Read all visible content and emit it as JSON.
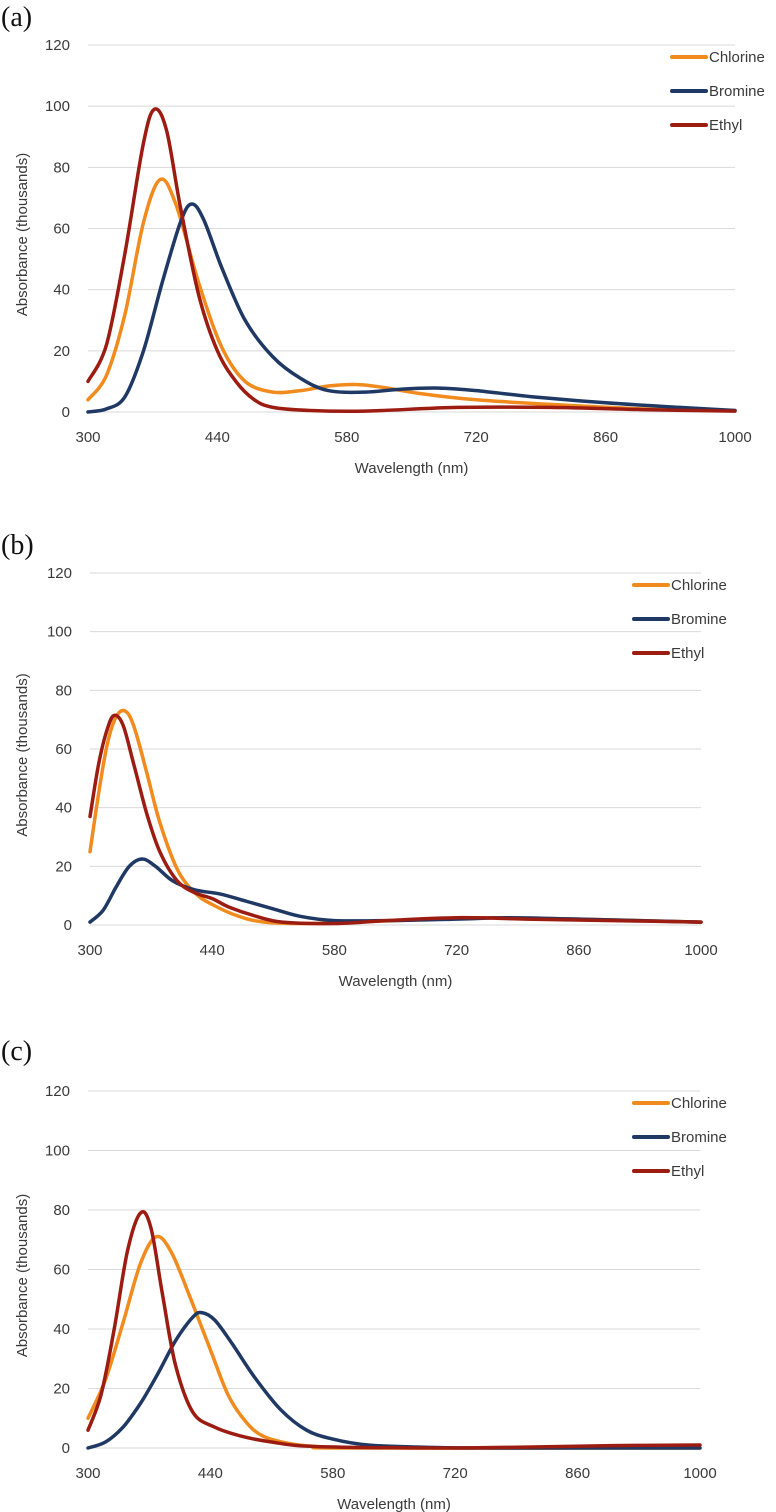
{
  "colors": {
    "Chlorine": "#f28b1e",
    "Bromine": "#1f3864",
    "Ethyl": "#9c1c12"
  },
  "chart_data": [
    {
      "type": "line",
      "panel_label": "(a)",
      "xlabel": "Wavelength (nm)",
      "ylabel": "Absorbance (thousands)",
      "xlim": [
        300,
        1000
      ],
      "ylim": [
        0,
        120
      ],
      "xticks": [
        300,
        440,
        580,
        720,
        860,
        1000
      ],
      "yticks": [
        0,
        20,
        40,
        60,
        80,
        100,
        120
      ],
      "grid": true,
      "legend": "top-right",
      "series": [
        {
          "name": "Chlorine",
          "points": [
            [
              300,
              4
            ],
            [
              320,
              12
            ],
            [
              340,
              32
            ],
            [
              360,
              62
            ],
            [
              378,
              76
            ],
            [
              395,
              68
            ],
            [
              420,
              42
            ],
            [
              445,
              21
            ],
            [
              470,
              10
            ],
            [
              500,
              6.5
            ],
            [
              530,
              7
            ],
            [
              560,
              8.5
            ],
            [
              590,
              9
            ],
            [
              620,
              8
            ],
            [
              660,
              6
            ],
            [
              720,
              4
            ],
            [
              800,
              2.5
            ],
            [
              900,
              1
            ],
            [
              1000,
              0.5
            ]
          ]
        },
        {
          "name": "Bromine",
          "points": [
            [
              300,
              0
            ],
            [
              320,
              1
            ],
            [
              340,
              5
            ],
            [
              360,
              20
            ],
            [
              380,
              42
            ],
            [
              400,
              62
            ],
            [
              412,
              68
            ],
            [
              425,
              63
            ],
            [
              445,
              47
            ],
            [
              470,
              30
            ],
            [
              500,
              18
            ],
            [
              530,
              11
            ],
            [
              560,
              7
            ],
            [
              600,
              6.5
            ],
            [
              640,
              7.5
            ],
            [
              680,
              7.8
            ],
            [
              720,
              7
            ],
            [
              780,
              5
            ],
            [
              860,
              3
            ],
            [
              940,
              1.5
            ],
            [
              1000,
              0.5
            ]
          ]
        },
        {
          "name": "Ethyl",
          "points": [
            [
              300,
              10
            ],
            [
              320,
              22
            ],
            [
              340,
              52
            ],
            [
              360,
              88
            ],
            [
              372,
              99
            ],
            [
              385,
              92
            ],
            [
              400,
              67
            ],
            [
              420,
              38
            ],
            [
              440,
              20
            ],
            [
              460,
              10
            ],
            [
              480,
              4
            ],
            [
              500,
              1.5
            ],
            [
              540,
              0.5
            ],
            [
              600,
              0.3
            ],
            [
              700,
              1.5
            ],
            [
              800,
              1.5
            ],
            [
              900,
              0.8
            ],
            [
              1000,
              0.3
            ]
          ]
        }
      ]
    },
    {
      "type": "line",
      "panel_label": "(b)",
      "xlabel": "Wavelength (nm)",
      "ylabel": "Absorbance (thousands)",
      "xlim": [
        300,
        1000
      ],
      "ylim": [
        0,
        120
      ],
      "xticks": [
        300,
        440,
        580,
        720,
        860,
        1000
      ],
      "yticks": [
        0,
        20,
        40,
        60,
        80,
        100,
        120
      ],
      "grid": true,
      "legend": "top-right",
      "series": [
        {
          "name": "Chlorine",
          "points": [
            [
              300,
              25
            ],
            [
              310,
              45
            ],
            [
              320,
              62
            ],
            [
              330,
              71
            ],
            [
              340,
              73
            ],
            [
              350,
              68
            ],
            [
              365,
              52
            ],
            [
              380,
              35
            ],
            [
              400,
              19
            ],
            [
              420,
              11
            ],
            [
              440,
              7
            ],
            [
              470,
              3
            ],
            [
              500,
              1
            ],
            [
              550,
              0.5
            ],
            [
              600,
              1
            ],
            [
              700,
              2
            ],
            [
              760,
              2.5
            ],
            [
              860,
              2
            ],
            [
              1000,
              1
            ]
          ]
        },
        {
          "name": "Bromine",
          "points": [
            [
              300,
              1
            ],
            [
              315,
              5
            ],
            [
              330,
              13
            ],
            [
              345,
              20
            ],
            [
              360,
              22.5
            ],
            [
              375,
              20
            ],
            [
              395,
              15
            ],
            [
              420,
              12
            ],
            [
              450,
              10.5
            ],
            [
              480,
              8
            ],
            [
              510,
              5.5
            ],
            [
              540,
              3
            ],
            [
              580,
              1.5
            ],
            [
              640,
              1.5
            ],
            [
              720,
              2
            ],
            [
              780,
              2.5
            ],
            [
              860,
              2
            ],
            [
              1000,
              1
            ]
          ]
        },
        {
          "name": "Ethyl",
          "points": [
            [
              300,
              37
            ],
            [
              310,
              55
            ],
            [
              320,
              67
            ],
            [
              328,
              71.5
            ],
            [
              338,
              68
            ],
            [
              350,
              55
            ],
            [
              365,
              38
            ],
            [
              380,
              25
            ],
            [
              400,
              15
            ],
            [
              420,
              11
            ],
            [
              440,
              9
            ],
            [
              460,
              6
            ],
            [
              490,
              3
            ],
            [
              520,
              1
            ],
            [
              580,
              0.5
            ],
            [
              640,
              1.5
            ],
            [
              720,
              2.5
            ],
            [
              800,
              2
            ],
            [
              900,
              1.5
            ],
            [
              1000,
              1
            ]
          ]
        }
      ]
    },
    {
      "type": "line",
      "panel_label": "(c)",
      "xlabel": "Wavelength (nm)",
      "ylabel": "Absorbance (thousands)",
      "xlim": [
        300,
        1000
      ],
      "ylim": [
        0,
        120
      ],
      "xticks": [
        300,
        440,
        580,
        720,
        860,
        1000
      ],
      "yticks": [
        0,
        20,
        40,
        60,
        80,
        100,
        120
      ],
      "grid": true,
      "legend": "top-right",
      "series": [
        {
          "name": "Chlorine",
          "points": [
            [
              300,
              10
            ],
            [
              320,
              23
            ],
            [
              340,
              42
            ],
            [
              360,
              62
            ],
            [
              378,
              71
            ],
            [
              395,
              66
            ],
            [
              415,
              52
            ],
            [
              440,
              33
            ],
            [
              460,
              18
            ],
            [
              480,
              9
            ],
            [
              500,
              4
            ],
            [
              530,
              1.5
            ],
            [
              560,
              0.5
            ],
            [
              600,
              0
            ],
            [
              1000,
              0
            ]
          ]
        },
        {
          "name": "Bromine",
          "points": [
            [
              300,
              0
            ],
            [
              320,
              2
            ],
            [
              340,
              7
            ],
            [
              360,
              15
            ],
            [
              380,
              25
            ],
            [
              400,
              36
            ],
            [
              420,
              44
            ],
            [
              430,
              45.5
            ],
            [
              445,
              43
            ],
            [
              465,
              35
            ],
            [
              490,
              24
            ],
            [
              520,
              13
            ],
            [
              550,
              6
            ],
            [
              580,
              3
            ],
            [
              620,
              1
            ],
            [
              680,
              0.3
            ],
            [
              760,
              0
            ],
            [
              1000,
              0
            ]
          ]
        },
        {
          "name": "Ethyl",
          "points": [
            [
              300,
              6
            ],
            [
              315,
              18
            ],
            [
              330,
              40
            ],
            [
              345,
              66
            ],
            [
              360,
              79
            ],
            [
              372,
              74
            ],
            [
              385,
              52
            ],
            [
              400,
              28
            ],
            [
              420,
              12
            ],
            [
              445,
              7
            ],
            [
              475,
              4
            ],
            [
              510,
              2
            ],
            [
              560,
              0.5
            ],
            [
              700,
              0
            ],
            [
              800,
              0.3
            ],
            [
              900,
              0.8
            ],
            [
              1000,
              1
            ]
          ]
        }
      ]
    }
  ]
}
